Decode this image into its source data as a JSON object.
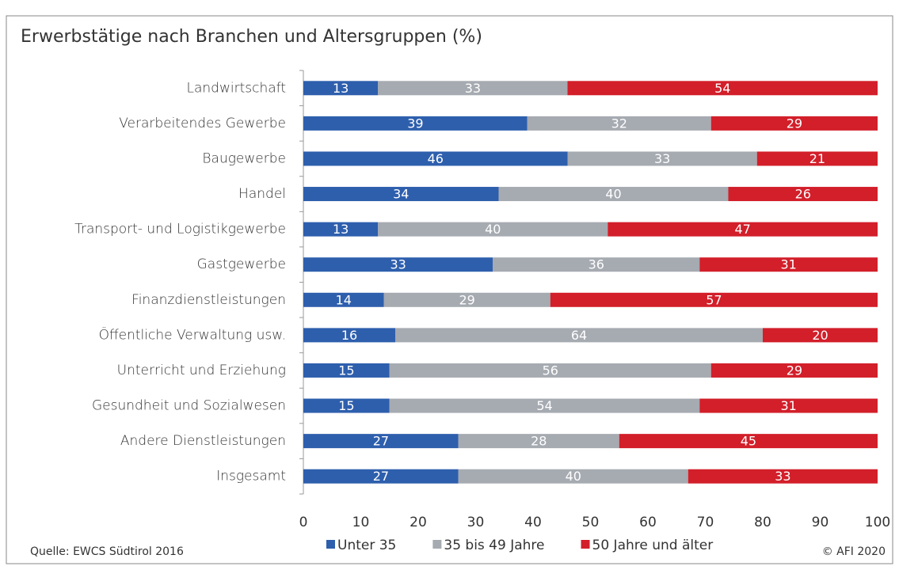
{
  "chart_data": {
    "type": "stacked-bar-horizontal",
    "title": "Erwerbstätige nach Branchen und Altersgruppen (%)",
    "categories": [
      "Landwirtschaft",
      "Verarbeitendes Gewerbe",
      "Baugewerbe",
      "Handel",
      "Transport- und Logistikgewerbe",
      "Gastgewerbe",
      "Finanzdienstleistungen",
      "Öffentliche Verwaltung usw.",
      "Unterricht und Erziehung",
      "Gesundheit und Sozialwesen",
      "Andere Dienstleistungen",
      "Insgesamt"
    ],
    "series": [
      {
        "name": "Unter 35",
        "color": "#2e5fad",
        "values": [
          13,
          39,
          46,
          34,
          13,
          33,
          14,
          16,
          15,
          15,
          27,
          27
        ]
      },
      {
        "name": "35 bis 49 Jahre",
        "color": "#a6aab1",
        "values": [
          33,
          32,
          33,
          40,
          40,
          36,
          29,
          64,
          56,
          54,
          28,
          40
        ]
      },
      {
        "name": "50 Jahre und älter",
        "color": "#d21f2a",
        "values": [
          54,
          29,
          21,
          26,
          47,
          31,
          57,
          20,
          29,
          31,
          45,
          33
        ]
      }
    ],
    "xlim": [
      0,
      100
    ],
    "xticks": [
      0,
      10,
      20,
      30,
      40,
      50,
      60,
      70,
      80,
      90,
      100
    ],
    "grid": false,
    "legend": "bottom",
    "source": "Quelle: EWCS Südtirol 2016",
    "credit": "© AFI 2020"
  }
}
